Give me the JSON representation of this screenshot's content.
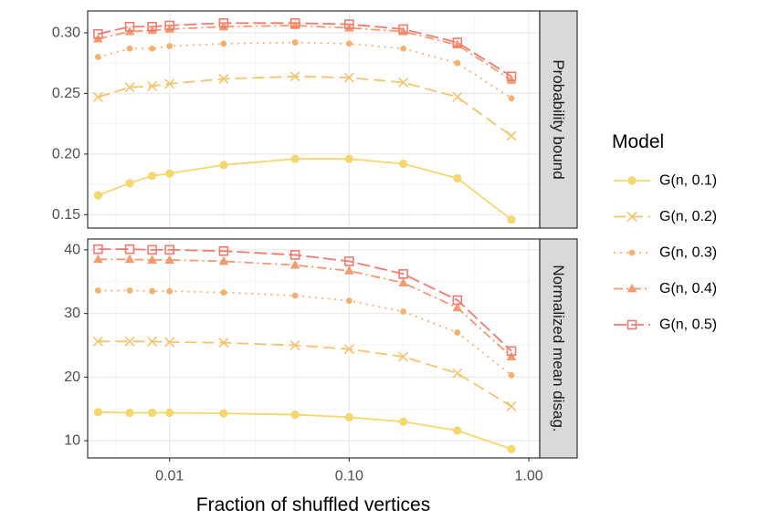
{
  "chart_data": {
    "type": "line",
    "x_label": "Fraction of shuffled vertices",
    "x_scale": "log10",
    "x_range": [
      0.0035,
      1.15
    ],
    "x_ticks": [
      0.01,
      0.1,
      1.0
    ],
    "x_tick_labels": [
      "0.01",
      "0.10",
      "1.00"
    ],
    "x": [
      0.004,
      0.006,
      0.008,
      0.01,
      0.02,
      0.05,
      0.1,
      0.2,
      0.4,
      0.8
    ],
    "legend_title": "Model",
    "legend_position": "right",
    "series_styles": [
      {
        "name": "G(n, 0.1)",
        "color": "#F5D76E",
        "dash": "",
        "marker": "circle"
      },
      {
        "name": "G(n, 0.2)",
        "color": "#F5C46E",
        "dash": "13 6",
        "marker": "x"
      },
      {
        "name": "G(n, 0.3)",
        "color": "#F5B06E",
        "dash": "2 5",
        "marker": "dot"
      },
      {
        "name": "G(n, 0.4)",
        "color": "#F49A6E",
        "dash": "10 4 2 4",
        "marker": "triangle"
      },
      {
        "name": "G(n, 0.5)",
        "color": "#F27A6E",
        "dash": "14 5",
        "marker": "square-open"
      }
    ],
    "panels": [
      {
        "strip": "Probability bound",
        "y_range": [
          0.139,
          0.318
        ],
        "y_ticks": [
          0.15,
          0.2,
          0.25,
          0.3
        ],
        "y_tick_labels": [
          "0.15",
          "0.20",
          "0.25",
          "0.30"
        ],
        "series": [
          {
            "name": "G(n, 0.1)",
            "values": [
              0.166,
              0.176,
              0.182,
              0.184,
              0.191,
              0.196,
              0.196,
              0.192,
              0.18,
              0.146
            ]
          },
          {
            "name": "G(n, 0.2)",
            "values": [
              0.247,
              0.255,
              0.256,
              0.258,
              0.262,
              0.264,
              0.263,
              0.259,
              0.247,
              0.215
            ]
          },
          {
            "name": "G(n, 0.3)",
            "values": [
              0.28,
              0.287,
              0.287,
              0.289,
              0.291,
              0.292,
              0.291,
              0.287,
              0.275,
              0.246
            ]
          },
          {
            "name": "G(n, 0.4)",
            "values": [
              0.295,
              0.301,
              0.302,
              0.303,
              0.305,
              0.306,
              0.304,
              0.301,
              0.29,
              0.261
            ]
          },
          {
            "name": "G(n, 0.5)",
            "values": [
              0.299,
              0.305,
              0.305,
              0.306,
              0.308,
              0.308,
              0.307,
              0.303,
              0.292,
              0.264
            ]
          }
        ]
      },
      {
        "strip": "Normalized mean disag.",
        "y_range": [
          7.3,
          41.7
        ],
        "y_ticks": [
          10,
          20,
          30,
          40
        ],
        "y_tick_labels": [
          "10",
          "20",
          "30",
          "40"
        ],
        "series": [
          {
            "name": "G(n, 0.1)",
            "values": [
              14.5,
              14.4,
              14.4,
              14.4,
              14.3,
              14.1,
              13.7,
              13.0,
              11.6,
              8.7
            ]
          },
          {
            "name": "G(n, 0.2)",
            "values": [
              25.6,
              25.6,
              25.6,
              25.5,
              25.4,
              25.0,
              24.4,
              23.2,
              20.6,
              15.4
            ]
          },
          {
            "name": "G(n, 0.3)",
            "values": [
              33.6,
              33.6,
              33.5,
              33.5,
              33.3,
              32.8,
              32.0,
              30.3,
              27.0,
              20.3
            ]
          },
          {
            "name": "G(n, 0.4)",
            "values": [
              38.5,
              38.5,
              38.4,
              38.4,
              38.2,
              37.6,
              36.7,
              34.8,
              30.9,
              23.2
            ]
          },
          {
            "name": "G(n, 0.5)",
            "values": [
              40.1,
              40.1,
              40.0,
              40.0,
              39.8,
              39.2,
              38.2,
              36.2,
              32.1,
              24.1
            ]
          }
        ]
      }
    ]
  }
}
